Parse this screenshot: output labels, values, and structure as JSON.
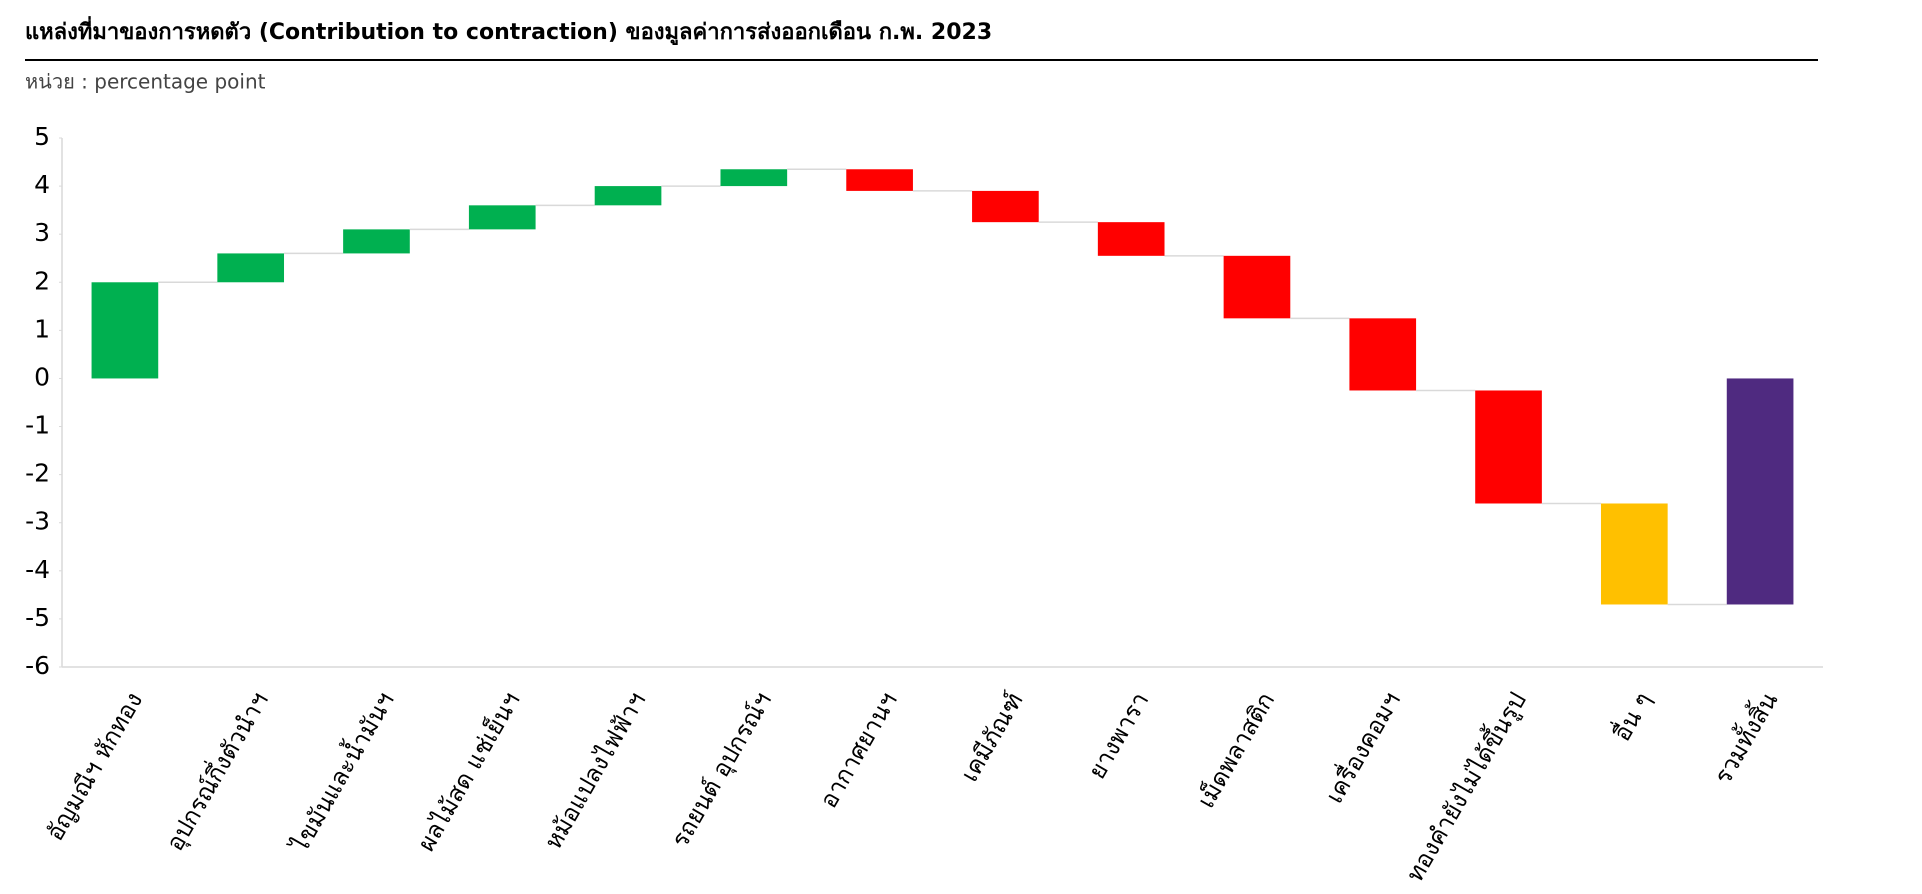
{
  "chart_data": {
    "type": "waterfall",
    "title": "แหล่งที่มาของการหดตัว (Contribution to contraction) ของมูลค่าการส่งออกเดือน ก.พ. 2023",
    "subtitle": "หน่วย : percentage point",
    "categories": [
      "อัญมณีฯ หักทอง",
      "อุปกรณ์กึ่งตัวนำฯ",
      "ไขมันและน้ำมันฯ",
      "ผลไม้สด แช่เย็นฯ",
      "หม้อแปลงไฟฟ้าฯ",
      "รถยนต์ อุปกรณ์ฯ",
      "อากาศยานฯ",
      "เคมีภัณฑ์",
      "ยางพารา",
      "เม็ดพลาสติก",
      "เครื่องคอมฯ",
      "ทองคำยังไม่ได้ขึ้นรูป",
      "อื่น ๆ",
      "รวมทั้งสิ้น"
    ],
    "values": [
      2.0,
      0.6,
      0.5,
      0.5,
      0.4,
      0.35,
      -0.45,
      -0.65,
      -0.7,
      -1.3,
      -1.5,
      -2.35,
      -2.1,
      -4.7
    ],
    "measure": [
      "relative",
      "relative",
      "relative",
      "relative",
      "relative",
      "relative",
      "relative",
      "relative",
      "relative",
      "relative",
      "relative",
      "relative",
      "relative",
      "total"
    ],
    "colors": [
      "#00b050",
      "#00b050",
      "#00b050",
      "#00b050",
      "#00b050",
      "#00b050",
      "#ff0000",
      "#ff0000",
      "#ff0000",
      "#ff0000",
      "#ff0000",
      "#ff0000",
      "#ffc000",
      "#4f2a80"
    ],
    "ylim": [
      -6,
      5
    ],
    "yticks": [
      -6,
      -5,
      -4,
      -3,
      -2,
      -1,
      0,
      1,
      2,
      3,
      4,
      5
    ]
  }
}
